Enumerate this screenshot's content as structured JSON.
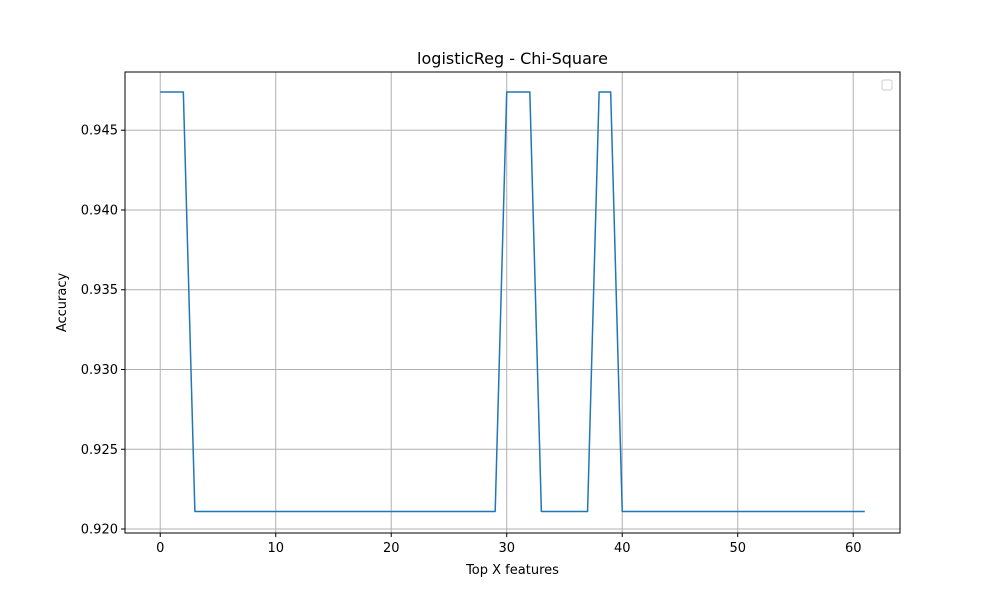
{
  "chart_data": {
    "type": "line",
    "title": "logisticReg - Chi-Square",
    "xlabel": "Top X features",
    "ylabel": "Accuracy",
    "xlim": [
      -3.05,
      64.05
    ],
    "ylim": [
      0.91975,
      0.94865
    ],
    "x_ticks": [
      "0",
      "10",
      "20",
      "30",
      "40",
      "50",
      "60"
    ],
    "y_ticks": [
      "0.920",
      "0.925",
      "0.930",
      "0.935",
      "0.940",
      "0.945"
    ],
    "grid": true,
    "legend": {
      "placement": "top-right",
      "entries": []
    },
    "series": [
      {
        "color": "#1f77b4",
        "x": [
          0,
          1,
          2,
          3,
          4,
          5,
          6,
          7,
          8,
          9,
          10,
          11,
          12,
          13,
          14,
          15,
          16,
          17,
          18,
          19,
          20,
          21,
          22,
          23,
          24,
          25,
          26,
          27,
          28,
          29,
          30,
          31,
          32,
          33,
          34,
          35,
          36,
          37,
          38,
          39,
          40,
          41,
          42,
          43,
          44,
          45,
          46,
          47,
          48,
          49,
          50,
          51,
          52,
          53,
          54,
          55,
          56,
          57,
          58,
          59,
          60,
          61
        ],
        "values": [
          0.9474,
          0.9474,
          0.9474,
          0.9211,
          0.9211,
          0.9211,
          0.9211,
          0.9211,
          0.9211,
          0.9211,
          0.9211,
          0.9211,
          0.9211,
          0.9211,
          0.9211,
          0.9211,
          0.9211,
          0.9211,
          0.9211,
          0.9211,
          0.9211,
          0.9211,
          0.9211,
          0.9211,
          0.9211,
          0.9211,
          0.9211,
          0.9211,
          0.9211,
          0.9211,
          0.9474,
          0.9474,
          0.9474,
          0.9211,
          0.9211,
          0.9211,
          0.9211,
          0.9211,
          0.9474,
          0.9474,
          0.9211,
          0.9211,
          0.9211,
          0.9211,
          0.9211,
          0.9211,
          0.9211,
          0.9211,
          0.9211,
          0.9211,
          0.9211,
          0.9211,
          0.9211,
          0.9211,
          0.9211,
          0.9211,
          0.9211,
          0.9211,
          0.9211,
          0.9211,
          0.9211,
          0.9211
        ]
      }
    ]
  }
}
